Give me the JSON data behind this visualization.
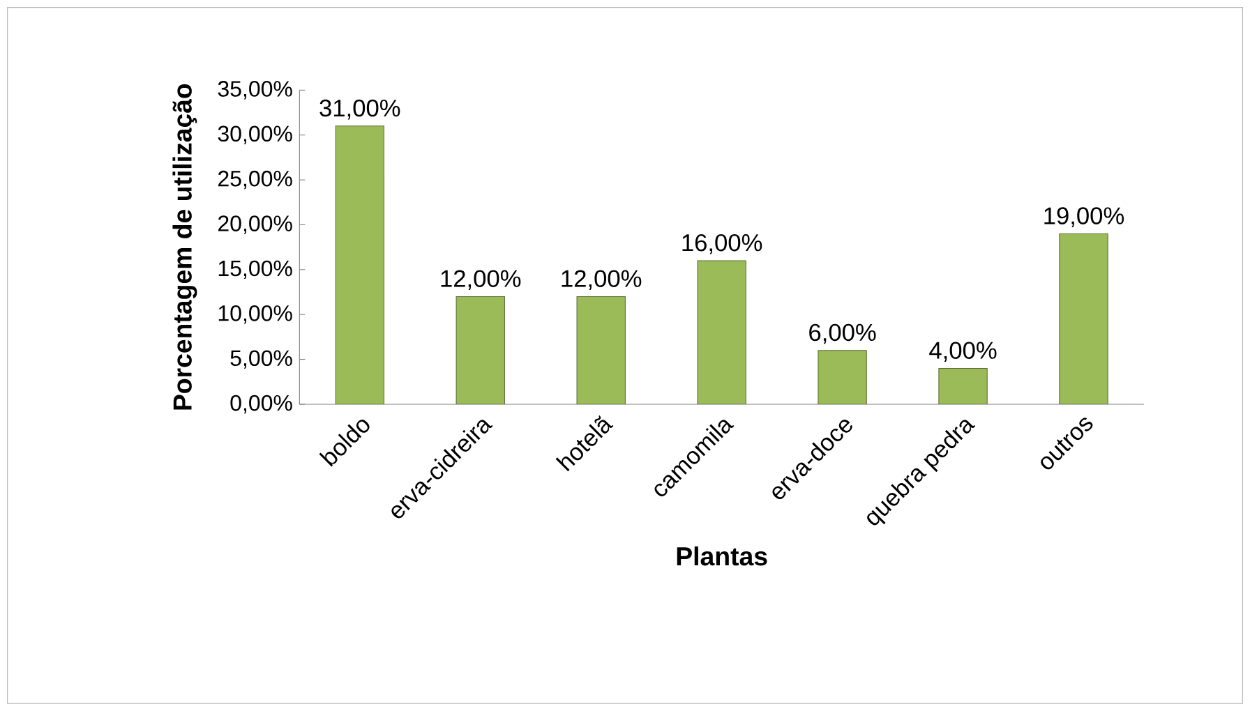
{
  "chart_data": {
    "type": "bar",
    "xlabel": "Plantas",
    "ylabel": "Porcentagem de utilização",
    "categories": [
      "boldo",
      "erva-cidreira",
      "hotelã",
      "camomila",
      "erva-doce",
      "quebra pedra",
      "outros"
    ],
    "values": [
      31,
      12,
      12,
      16,
      6,
      4,
      19
    ],
    "value_labels": [
      "31,00%",
      "12,00%",
      "12,00%",
      "16,00%",
      "6,00%",
      "4,00%",
      "19,00%"
    ],
    "color": "#9bbb59",
    "ylim": [
      0,
      35
    ],
    "yticks": [
      {
        "value": 0,
        "label": "0,00%"
      },
      {
        "value": 5,
        "label": "5,00%"
      },
      {
        "value": 10,
        "label": "10,00%"
      },
      {
        "value": 15,
        "label": "15,00%"
      },
      {
        "value": 20,
        "label": "20,00%"
      },
      {
        "value": 25,
        "label": "25,00%"
      },
      {
        "value": 30,
        "label": "30,00%"
      },
      {
        "value": 35,
        "label": "35,00%"
      }
    ],
    "grid": false
  }
}
